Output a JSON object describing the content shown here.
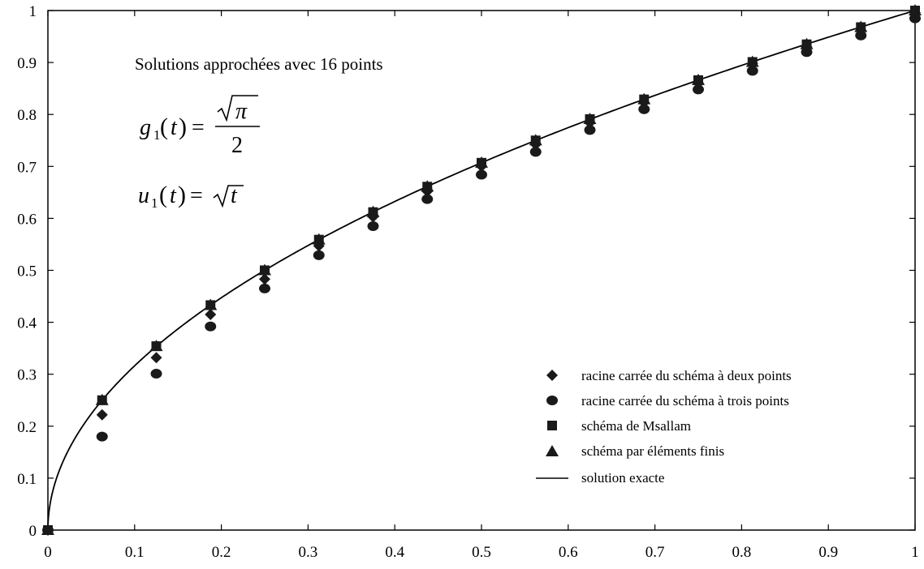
{
  "chart_data": {
    "type": "scatter",
    "title": "",
    "xlabel": "",
    "ylabel": "",
    "xlim": [
      0,
      1
    ],
    "ylim": [
      0,
      1
    ],
    "grid": false,
    "legend_position": "bottom-right",
    "x_ticks": [
      "0",
      "0.1",
      "0.2",
      "0.3",
      "0.4",
      "0.5",
      "0.6",
      "0.7",
      "0.8",
      "0.9",
      "1"
    ],
    "y_ticks": [
      "0",
      "0.1",
      "0.2",
      "0.3",
      "0.4",
      "0.5",
      "0.6",
      "0.7",
      "0.8",
      "0.9",
      "1"
    ],
    "x": [
      0,
      0.0625,
      0.125,
      0.1875,
      0.25,
      0.3125,
      0.375,
      0.4375,
      0.5,
      0.5625,
      0.625,
      0.6875,
      0.75,
      0.8125,
      0.875,
      0.9375,
      1.0
    ],
    "series": [
      {
        "name": "racine carrée du schéma à deux points",
        "marker": "diamond",
        "values": [
          0,
          0.222,
          0.332,
          0.415,
          0.483,
          0.547,
          0.603,
          0.652,
          0.7,
          0.742,
          0.784,
          0.823,
          0.86,
          0.898,
          0.93,
          0.961,
          0.996
        ]
      },
      {
        "name": "racine carrée du schéma à trois points",
        "marker": "circle",
        "values": [
          0,
          0.18,
          0.301,
          0.392,
          0.465,
          0.529,
          0.585,
          0.637,
          0.684,
          0.728,
          0.77,
          0.81,
          0.848,
          0.884,
          0.92,
          0.952,
          0.985
        ]
      },
      {
        "name": "schéma de Msallam",
        "marker": "square",
        "values": [
          0,
          0.25,
          0.354,
          0.433,
          0.5,
          0.559,
          0.612,
          0.661,
          0.707,
          0.75,
          0.791,
          0.829,
          0.866,
          0.901,
          0.935,
          0.968,
          1.0
        ]
      },
      {
        "name": "schéma par éléments finis",
        "marker": "triangle",
        "values": [
          0,
          0.25,
          0.354,
          0.433,
          0.5,
          0.559,
          0.612,
          0.661,
          0.707,
          0.75,
          0.791,
          0.829,
          0.866,
          0.901,
          0.935,
          0.968,
          1.0
        ]
      },
      {
        "name": "solution exacte",
        "marker": "line",
        "function": "sqrt(t)"
      }
    ],
    "annotations": {
      "subtitle": "Solutions approchées avec 16 points",
      "eq1": {
        "g": "g",
        "sub": "1",
        "t": "t",
        "sqrt_arg": "π",
        "denominator": "2"
      },
      "eq2": {
        "u": "u",
        "sub": "1",
        "t": "t",
        "sqrt_arg": "t"
      }
    }
  }
}
